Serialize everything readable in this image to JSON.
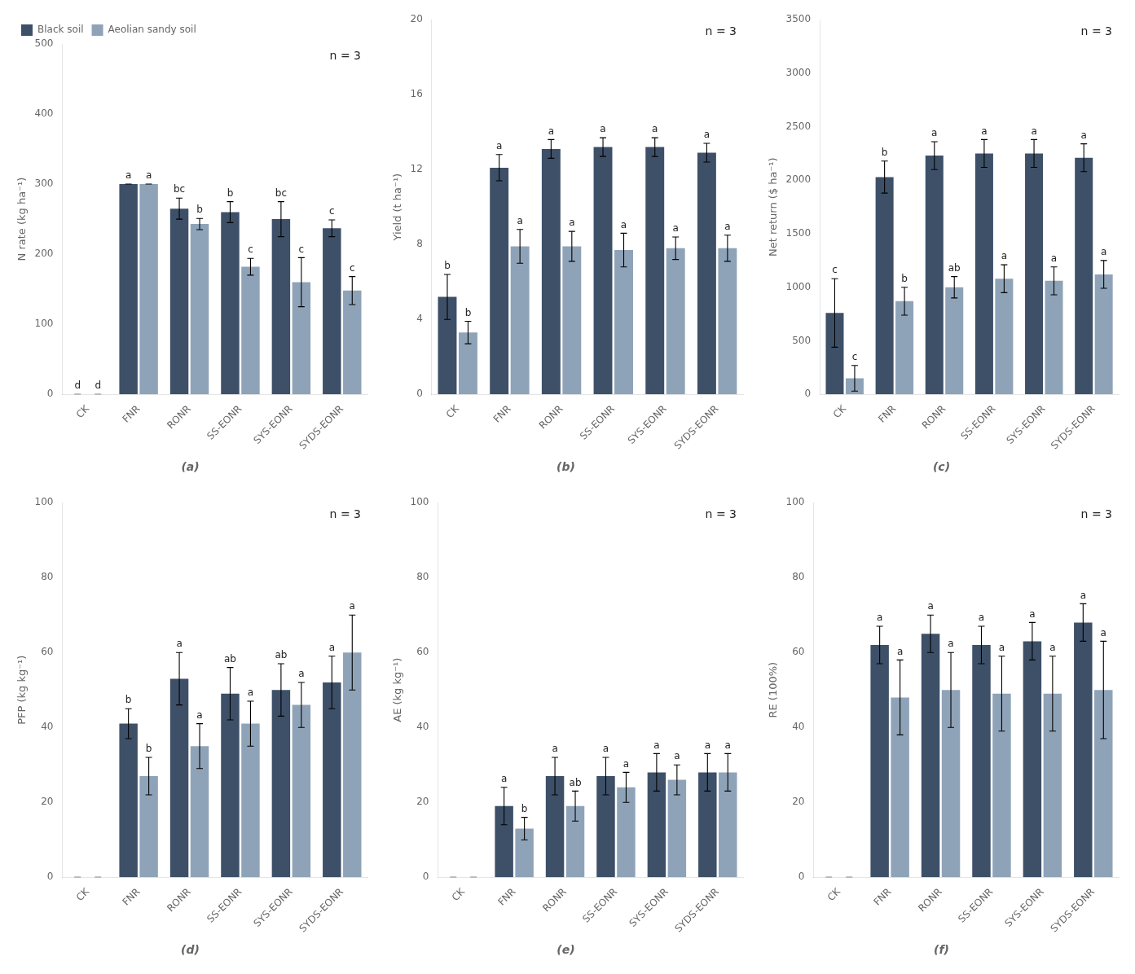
{
  "chart_data": [
    {
      "type": "bar",
      "title": "(a)",
      "ylabel": "N rate (kg ha⁻¹)",
      "categories": [
        "CK",
        "FNR",
        "RONR",
        "SS-EONR",
        "SYS-EONR",
        "SYDS-EONR"
      ],
      "series": [
        {
          "name": "Black soil",
          "color": "#3d5068",
          "values": [
            0,
            300,
            265,
            260,
            250,
            237
          ],
          "errors": [
            0,
            0,
            15,
            15,
            25,
            12
          ],
          "letters": [
            "d",
            "a",
            "bc",
            "b",
            "bc",
            "c"
          ]
        },
        {
          "name": "Aeolian sandy soil",
          "color": "#8fa3b8",
          "values": [
            0,
            300,
            243,
            182,
            160,
            148
          ],
          "errors": [
            0,
            0,
            8,
            12,
            35,
            20
          ],
          "letters": [
            "d",
            "a",
            "b",
            "c",
            "c",
            "c"
          ]
        }
      ],
      "ylim": [
        0,
        500
      ],
      "yticks": [
        0,
        100,
        200,
        300,
        400,
        500
      ],
      "grid": false,
      "legend": "upper left",
      "annotation": "n = 3"
    },
    {
      "type": "bar",
      "title": "(b)",
      "ylabel": "Yield (t ha⁻¹)",
      "categories": [
        "CK",
        "FNR",
        "RONR",
        "SS-EONR",
        "SYS-EONR",
        "SYDS-EONR"
      ],
      "series": [
        {
          "color": "#3d5068",
          "values": [
            5.2,
            12.1,
            13.1,
            13.2,
            13.2,
            12.9
          ],
          "errors": [
            1.2,
            0.7,
            0.5,
            0.5,
            0.5,
            0.5
          ],
          "letters": [
            "b",
            "a",
            "a",
            "a",
            "a",
            "a"
          ]
        },
        {
          "color": "#8fa3b8",
          "values": [
            3.3,
            7.9,
            7.9,
            7.7,
            7.8,
            7.8
          ],
          "errors": [
            0.6,
            0.9,
            0.8,
            0.9,
            0.6,
            0.7
          ],
          "letters": [
            "b",
            "a",
            "a",
            "a",
            "a",
            "a"
          ]
        }
      ],
      "ylim": [
        0,
        20
      ],
      "yticks": [
        0,
        4,
        8,
        12,
        16,
        20
      ],
      "grid": false,
      "annotation": "n = 3"
    },
    {
      "type": "bar",
      "title": "(c)",
      "ylabel": "Net return ($ ha⁻¹)",
      "categories": [
        "CK",
        "FNR",
        "RONR",
        "SS-EONR",
        "SYS-EONR",
        "SYDS-EONR"
      ],
      "series": [
        {
          "color": "#3d5068",
          "values": [
            760,
            2030,
            2230,
            2250,
            2250,
            2210
          ],
          "errors": [
            320,
            150,
            130,
            130,
            130,
            130
          ],
          "letters": [
            "c",
            "b",
            "a",
            "a",
            "a",
            "a"
          ]
        },
        {
          "color": "#8fa3b8",
          "values": [
            150,
            870,
            1000,
            1080,
            1060,
            1120
          ],
          "errors": [
            120,
            130,
            100,
            130,
            130,
            130
          ],
          "letters": [
            "c",
            "b",
            "ab",
            "a",
            "a",
            "a"
          ]
        }
      ],
      "ylim": [
        0,
        3500
      ],
      "yticks": [
        0,
        500,
        1000,
        1500,
        2000,
        2500,
        3000,
        3500
      ],
      "grid": false,
      "annotation": "n = 3"
    },
    {
      "type": "bar",
      "title": "(d)",
      "ylabel": "PFP (kg kg⁻¹)",
      "categories": [
        "CK",
        "FNR",
        "RONR",
        "SS-EONR",
        "SYS-EONR",
        "SYDS-EONR"
      ],
      "series": [
        {
          "color": "#3d5068",
          "values": [
            0,
            41,
            53,
            49,
            50,
            52
          ],
          "errors": [
            0,
            4,
            7,
            7,
            7,
            7
          ],
          "letters": [
            null,
            "b",
            "a",
            "ab",
            "ab",
            "a"
          ]
        },
        {
          "color": "#8fa3b8",
          "values": [
            0,
            27,
            35,
            41,
            46,
            60
          ],
          "errors": [
            0,
            5,
            6,
            6,
            6,
            10
          ],
          "letters": [
            null,
            "b",
            "a",
            "a",
            "a",
            "a"
          ]
        }
      ],
      "ylim": [
        0,
        100
      ],
      "yticks": [
        0,
        20,
        40,
        60,
        80,
        100
      ],
      "grid": false,
      "annotation": "n = 3"
    },
    {
      "type": "bar",
      "title": "(e)",
      "ylabel": "AE (kg kg⁻¹)",
      "categories": [
        "CK",
        "FNR",
        "RONR",
        "SS-EONR",
        "SYS-EONR",
        "SYDS-EONR"
      ],
      "series": [
        {
          "color": "#3d5068",
          "values": [
            0,
            19,
            27,
            27,
            28,
            28
          ],
          "errors": [
            0,
            5,
            5,
            5,
            5,
            5
          ],
          "letters": [
            null,
            "a",
            "a",
            "a",
            "a",
            "a"
          ]
        },
        {
          "color": "#8fa3b8",
          "values": [
            0,
            13,
            19,
            24,
            26,
            28
          ],
          "errors": [
            0,
            3,
            4,
            4,
            4,
            5
          ],
          "letters": [
            null,
            "b",
            "ab",
            "a",
            "a",
            "a"
          ]
        }
      ],
      "ylim": [
        0,
        100
      ],
      "yticks": [
        0,
        20,
        40,
        60,
        80,
        100
      ],
      "grid": false,
      "annotation": "n = 3"
    },
    {
      "type": "bar",
      "title": "(f)",
      "ylabel": "RE (100%)",
      "categories": [
        "CK",
        "FNR",
        "RONR",
        "SS-EONR",
        "SYS-EONR",
        "SYDS-EONR"
      ],
      "series": [
        {
          "color": "#3d5068",
          "values": [
            0,
            62,
            65,
            62,
            63,
            68
          ],
          "errors": [
            0,
            5,
            5,
            5,
            5,
            5
          ],
          "letters": [
            null,
            "a",
            "a",
            "a",
            "a",
            "a"
          ]
        },
        {
          "color": "#8fa3b8",
          "values": [
            0,
            48,
            50,
            49,
            49,
            50
          ],
          "errors": [
            0,
            10,
            10,
            10,
            10,
            13
          ],
          "letters": [
            null,
            "a",
            "a",
            "a",
            "a",
            "a"
          ]
        }
      ],
      "ylim": [
        0,
        100
      ],
      "yticks": [
        0,
        20,
        40,
        60,
        80,
        100
      ],
      "grid": false,
      "annotation": "n = 3"
    }
  ]
}
